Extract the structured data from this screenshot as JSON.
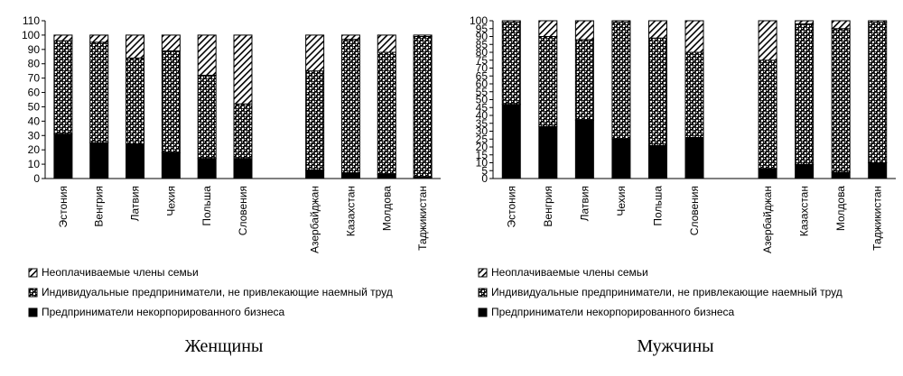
{
  "chart_data": [
    {
      "type": "bar",
      "stacked": true,
      "title": "Женщины",
      "categories": [
        "Эстония",
        "Венгрия",
        "Латвия",
        "Чехия",
        "Польша",
        "Словения",
        "",
        "Азербайджан",
        "Казахстан",
        "Молдова",
        "Таджикистан"
      ],
      "series": [
        {
          "name": "Предприниматели некорпорированного бизнеса",
          "values": [
            31,
            25,
            24,
            18,
            14,
            14,
            null,
            6,
            4,
            3,
            1
          ]
        },
        {
          "name": "Индивидуальные предприниматели, не привлекающие наемный труд",
          "values": [
            65,
            70,
            60,
            71,
            58,
            38,
            null,
            69,
            93,
            85,
            98
          ]
        },
        {
          "name": "Неоплачиваемые члены семьи",
          "values": [
            4,
            5,
            16,
            11,
            28,
            48,
            null,
            25,
            3,
            12,
            1
          ]
        }
      ],
      "ylim": [
        0,
        110
      ],
      "yticks": [
        0,
        10,
        20,
        30,
        40,
        50,
        60,
        70,
        80,
        90,
        100,
        110
      ],
      "legend_position": "bottom"
    },
    {
      "type": "bar",
      "stacked": true,
      "title": "Мужчины",
      "categories": [
        "Эстония",
        "Венгрия",
        "Латвия",
        "Чехия",
        "Польша",
        "Словения",
        "",
        "Азербайджан",
        "Казахстан",
        "Молдова",
        "Таджикистан"
      ],
      "series": [
        {
          "name": "Предприниматели некорпорированного бизнеса",
          "values": [
            47,
            33,
            37,
            25,
            21,
            26,
            null,
            6,
            9,
            4,
            10
          ]
        },
        {
          "name": "Индивидуальные предприниматели, не привлекающие наемный труд",
          "values": [
            52,
            57,
            51,
            74,
            68,
            54,
            null,
            69,
            89,
            91,
            89
          ]
        },
        {
          "name": "Неоплачиваемые члены семьи",
          "values": [
            1,
            10,
            12,
            1,
            11,
            20,
            null,
            25,
            2,
            5,
            1
          ]
        }
      ],
      "ylim": [
        0,
        100
      ],
      "yticks": [
        0,
        5,
        10,
        15,
        20,
        25,
        30,
        35,
        40,
        45,
        50,
        55,
        60,
        65,
        70,
        75,
        80,
        85,
        90,
        95,
        100
      ],
      "legend_position": "bottom"
    }
  ],
  "legend_order": [
    2,
    1,
    0
  ]
}
